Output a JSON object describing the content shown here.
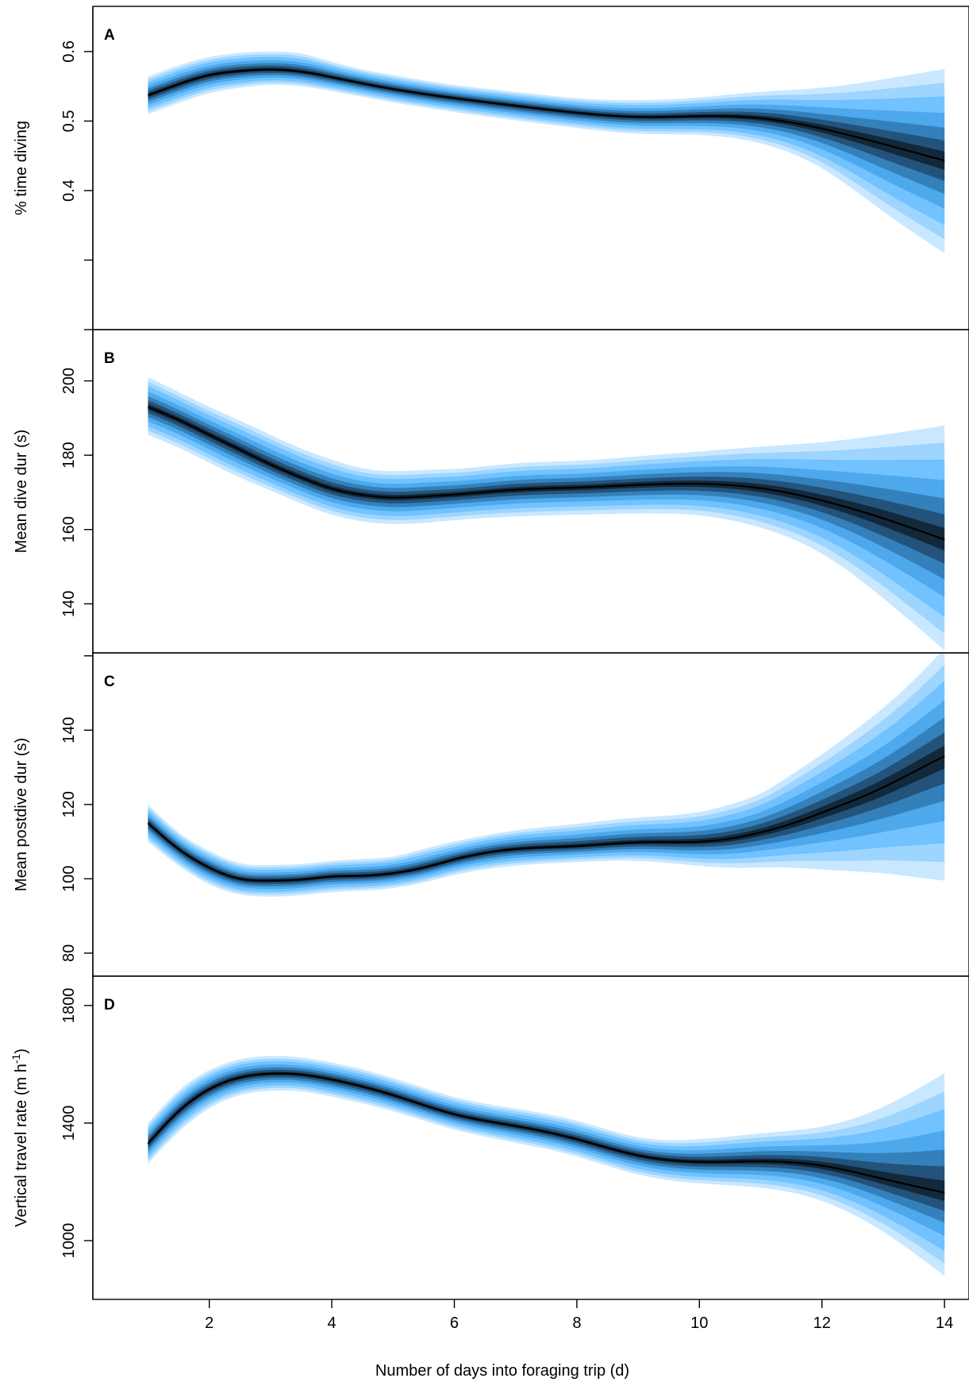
{
  "colors": {
    "ribbon": "#4db3ff",
    "mean_line": "#000000"
  },
  "xaxis": {
    "label": "Number of days into foraging trip (d)"
  },
  "chart_data": [
    {
      "type": "area",
      "panel": "A",
      "ylabel": "% time diving",
      "xlim": [
        0.1,
        14.4
      ],
      "ylim": [
        0.2,
        0.665
      ],
      "x_ticks": [
        2,
        4,
        6,
        8,
        10,
        12,
        14
      ],
      "y_ticks": [
        0.4,
        0.5,
        0.6
      ],
      "y_tick_labels": [
        "0.4",
        "0.5",
        "0.6"
      ],
      "x": [
        1,
        1.5,
        2,
        2.5,
        3,
        3.5,
        4,
        5,
        6,
        7,
        8,
        9,
        10,
        11,
        12,
        13,
        14
      ],
      "mean": [
        0.537,
        0.553,
        0.566,
        0.572,
        0.574,
        0.571,
        0.563,
        0.546,
        0.533,
        0.522,
        0.512,
        0.506,
        0.507,
        0.504,
        0.489,
        0.467,
        0.443
      ],
      "lower": [
        0.51,
        0.526,
        0.54,
        0.548,
        0.552,
        0.55,
        0.543,
        0.527,
        0.513,
        0.501,
        0.49,
        0.482,
        0.48,
        0.468,
        0.432,
        0.37,
        0.31
      ],
      "upper": [
        0.564,
        0.58,
        0.592,
        0.598,
        0.6,
        0.597,
        0.585,
        0.566,
        0.552,
        0.542,
        0.533,
        0.53,
        0.534,
        0.542,
        0.548,
        0.56,
        0.575
      ]
    },
    {
      "type": "area",
      "panel": "B",
      "ylabel": "Mean dive dur (s)",
      "xlim": [
        0.1,
        14.4
      ],
      "ylim": [
        126.8,
        213.8
      ],
      "x_ticks": [
        2,
        4,
        6,
        8,
        10,
        12,
        14
      ],
      "y_ticks": [
        140,
        160,
        180,
        200
      ],
      "y_tick_labels": [
        "140",
        "160",
        "180",
        "200"
      ],
      "x": [
        1,
        1.5,
        2,
        2.5,
        3,
        3.5,
        4,
        4.5,
        5,
        5.5,
        6,
        7,
        8,
        9,
        10,
        11,
        12,
        13,
        14
      ],
      "mean": [
        193,
        189.5,
        185.5,
        181.5,
        177.5,
        174,
        171,
        169.3,
        168.6,
        168.9,
        169.4,
        170.7,
        171.3,
        172,
        172.3,
        171.1,
        167.8,
        163,
        157.3
      ],
      "lower": [
        185.5,
        182,
        178,
        174,
        170.5,
        167,
        164,
        162.2,
        161.5,
        161.8,
        162.5,
        163.5,
        164,
        164.3,
        163.8,
        160.5,
        153.5,
        141.5,
        127.5
      ],
      "upper": [
        201,
        197,
        193,
        189.3,
        185.5,
        181.8,
        178.8,
        176.5,
        175.7,
        176,
        176.3,
        177.8,
        178.5,
        179.7,
        181,
        182.3,
        183.5,
        185.5,
        188
      ]
    },
    {
      "type": "area",
      "panel": "C",
      "ylabel": "Mean postdive dur (s)",
      "xlim": [
        0.1,
        14.4
      ],
      "ylim": [
        73.8,
        160.8
      ],
      "x_ticks": [
        2,
        4,
        6,
        8,
        10,
        12,
        14
      ],
      "y_ticks": [
        80,
        100,
        120,
        140
      ],
      "y_tick_labels": [
        "80",
        "100",
        "120",
        "140"
      ],
      "x": [
        1,
        1.5,
        2,
        2.5,
        3,
        3.5,
        4,
        4.5,
        5,
        5.5,
        6,
        7,
        8,
        9,
        10,
        10.5,
        11,
        11.5,
        12,
        12.5,
        13,
        13.5,
        14
      ],
      "mean": [
        115,
        108,
        103,
        100,
        99.5,
        99.8,
        100.6,
        100.8,
        101.5,
        103,
        105.2,
        108,
        108.8,
        109.8,
        110,
        110.8,
        112.5,
        114.8,
        117.8,
        121,
        124.6,
        128.8,
        133
      ],
      "lower": [
        110,
        103.5,
        98.5,
        95.8,
        95.2,
        95.6,
        96.4,
        96.8,
        97.5,
        99,
        101,
        103.5,
        104.5,
        104.8,
        103.5,
        103,
        103,
        103,
        102.5,
        102,
        101.5,
        100.5,
        99.5
      ],
      "upper": [
        120,
        112.5,
        107.5,
        104.2,
        103.7,
        104,
        104.8,
        105.3,
        106,
        108,
        110,
        113,
        114.8,
        116.5,
        118,
        120,
        123,
        128,
        133.5,
        139.5,
        146,
        153.5,
        162
      ]
    },
    {
      "type": "area",
      "panel": "D",
      "ylabel": "Vertical travel rate (m h",
      "ylabel_superscript": "-1",
      "ylabel_suffix": ")",
      "xlim": [
        0.1,
        14.4
      ],
      "ylim": [
        800,
        1900
      ],
      "x_ticks": [
        2,
        4,
        6,
        8,
        10,
        12,
        14
      ],
      "x_tick_labels": [
        "2",
        "4",
        "6",
        "8",
        "10",
        "12",
        "14"
      ],
      "y_ticks": [
        1000,
        1400,
        1800
      ],
      "y_tick_labels": [
        "1000",
        "1400",
        "1800"
      ],
      "x": [
        1,
        1.5,
        2,
        2.5,
        3,
        3.5,
        4,
        5,
        6,
        7,
        8,
        9,
        10,
        11,
        12,
        13,
        14
      ],
      "mean": [
        1330,
        1440,
        1515,
        1555,
        1568,
        1565,
        1548,
        1495,
        1430,
        1390,
        1345,
        1290,
        1268,
        1270,
        1255,
        1210,
        1163
      ],
      "lower": [
        1262,
        1370,
        1450,
        1495,
        1510,
        1508,
        1490,
        1440,
        1378,
        1333,
        1286,
        1225,
        1195,
        1180,
        1135,
        1030,
        880
      ],
      "upper": [
        1400,
        1510,
        1580,
        1617,
        1628,
        1623,
        1606,
        1553,
        1489,
        1449,
        1408,
        1352,
        1345,
        1365,
        1388,
        1455,
        1570
      ]
    }
  ]
}
